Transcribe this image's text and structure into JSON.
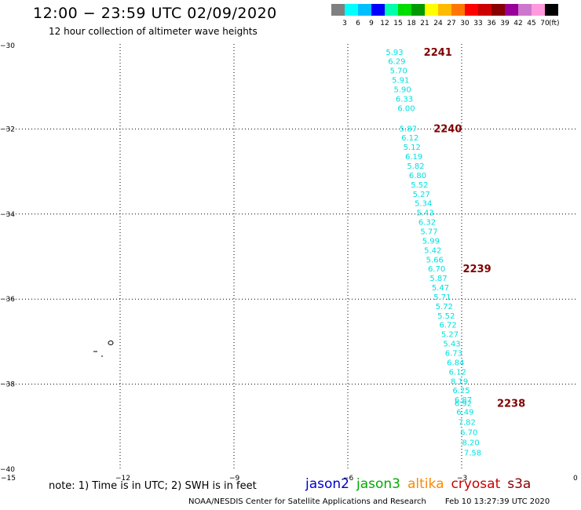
{
  "header": {
    "title": "12:00 − 23:59 UTC 02/09/2020",
    "subtitle": "12 hour collection of altimeter wave heights"
  },
  "colorbar": {
    "colors": [
      "#808080",
      "#00ffff",
      "#00bfff",
      "#0000ff",
      "#00ffaa",
      "#00dd00",
      "#009900",
      "#ffff00",
      "#ffbb00",
      "#ff7700",
      "#ff0000",
      "#cc0000",
      "#880000",
      "#990099",
      "#cc77cc",
      "#ff99dd",
      "#000000"
    ],
    "labels": [
      "3",
      "6",
      "9",
      "12",
      "15",
      "18",
      "21",
      "24",
      "27",
      "30",
      "33",
      "36",
      "39",
      "42",
      "45",
      "70"
    ],
    "unit": "(ft)"
  },
  "chart_data": {
    "type": "scatter",
    "x_ticks": [
      "−15",
      "−12",
      "−9",
      "−6",
      "−3",
      "0"
    ],
    "y_ticks": [
      "−30",
      "−32",
      "−34",
      "−36",
      "−38",
      "−40"
    ],
    "xlim": [
      -15,
      0
    ],
    "ylim": [
      -40,
      -30
    ],
    "grid": true,
    "wave_heights": [
      {
        "lon": -5.0,
        "lat": -30.18,
        "label": "5.93"
      },
      {
        "lon": -4.94,
        "lat": -30.4,
        "label": "6.29"
      },
      {
        "lon": -4.89,
        "lat": -30.62,
        "label": "5.70"
      },
      {
        "lon": -4.84,
        "lat": -30.84,
        "label": "5.91"
      },
      {
        "lon": -4.79,
        "lat": -31.06,
        "label": "5.90"
      },
      {
        "lon": -4.74,
        "lat": -31.28,
        "label": "6.33"
      },
      {
        "lon": -4.69,
        "lat": -31.5,
        "label": "6.00"
      },
      {
        "lon": -4.64,
        "lat": -31.98,
        "label": "5.87"
      },
      {
        "lon": -4.59,
        "lat": -32.2,
        "label": "6.12"
      },
      {
        "lon": -4.54,
        "lat": -32.42,
        "label": "5.12"
      },
      {
        "lon": -4.49,
        "lat": -32.64,
        "label": "6.19"
      },
      {
        "lon": -4.44,
        "lat": -32.86,
        "label": "5.82"
      },
      {
        "lon": -4.39,
        "lat": -33.08,
        "label": "6.80"
      },
      {
        "lon": -4.34,
        "lat": -33.3,
        "label": "5.52"
      },
      {
        "lon": -4.29,
        "lat": -33.52,
        "label": "5.27"
      },
      {
        "lon": -4.24,
        "lat": -33.74,
        "label": "5.34"
      },
      {
        "lon": -4.19,
        "lat": -33.96,
        "label": "5.43"
      },
      {
        "lon": -4.14,
        "lat": -34.18,
        "label": "6.32"
      },
      {
        "lon": -4.09,
        "lat": -34.4,
        "label": "5.77"
      },
      {
        "lon": -4.04,
        "lat": -34.62,
        "label": "5.99"
      },
      {
        "lon": -3.99,
        "lat": -34.84,
        "label": "5.42"
      },
      {
        "lon": -3.94,
        "lat": -35.06,
        "label": "5.66"
      },
      {
        "lon": -3.89,
        "lat": -35.28,
        "label": "6.70"
      },
      {
        "lon": -3.84,
        "lat": -35.5,
        "label": "5.87"
      },
      {
        "lon": -3.79,
        "lat": -35.72,
        "label": "5.47"
      },
      {
        "lon": -3.74,
        "lat": -35.94,
        "label": "5.71"
      },
      {
        "lon": -3.69,
        "lat": -36.16,
        "label": "5.72"
      },
      {
        "lon": -3.64,
        "lat": -36.38,
        "label": "5.52"
      },
      {
        "lon": -3.59,
        "lat": -36.6,
        "label": "6.72"
      },
      {
        "lon": -3.54,
        "lat": -36.82,
        "label": "5.27"
      },
      {
        "lon": -3.49,
        "lat": -37.04,
        "label": "5.43"
      },
      {
        "lon": -3.44,
        "lat": -37.26,
        "label": "6.73"
      },
      {
        "lon": -3.39,
        "lat": -37.48,
        "label": "6.84"
      },
      {
        "lon": -3.34,
        "lat": -37.7,
        "label": "6.12"
      },
      {
        "lon": -3.29,
        "lat": -37.92,
        "label": "8.19"
      },
      {
        "lon": -3.24,
        "lat": -38.14,
        "label": "6.25"
      },
      {
        "lon": -3.19,
        "lat": -38.36,
        "label": "6.87"
      },
      {
        "lon": -3.19,
        "lat": -38.44,
        "label": "6.92"
      },
      {
        "lon": -3.14,
        "lat": -38.64,
        "label": "6.49"
      },
      {
        "lon": -3.09,
        "lat": -38.88,
        "label": "7.82"
      },
      {
        "lon": -3.04,
        "lat": -39.12,
        "label": "6.70"
      },
      {
        "lon": -2.99,
        "lat": -39.36,
        "label": "8.20"
      },
      {
        "lon": -2.94,
        "lat": -39.6,
        "label": "7.58"
      }
    ],
    "pass_times": [
      {
        "lon": -4.0,
        "lat": -30.18,
        "label": "2241"
      },
      {
        "lon": -3.74,
        "lat": -31.98,
        "label": "2240"
      },
      {
        "lon": -2.97,
        "lat": -35.28,
        "label": "2239"
      },
      {
        "lon": -2.07,
        "lat": -38.44,
        "label": "2238"
      }
    ],
    "label_color": "#00e0e0",
    "time_color": "#800000"
  },
  "note": "note:  1) Time is in UTC;  2) SWH is in feet",
  "satellites": [
    {
      "name": "jason2",
      "color": "#0000cc"
    },
    {
      "name": "jason3",
      "color": "#00aa00"
    },
    {
      "name": "altika",
      "color": "#ff8800"
    },
    {
      "name": "cryosat",
      "color": "#cc0000"
    },
    {
      "name": "s3a",
      "color": "#880000"
    }
  ],
  "footer": {
    "credit": "NOAA/NESDIS Center for Satellite Applications and Research",
    "timestamp": "Feb 10 13:27:39 UTC 2020"
  }
}
